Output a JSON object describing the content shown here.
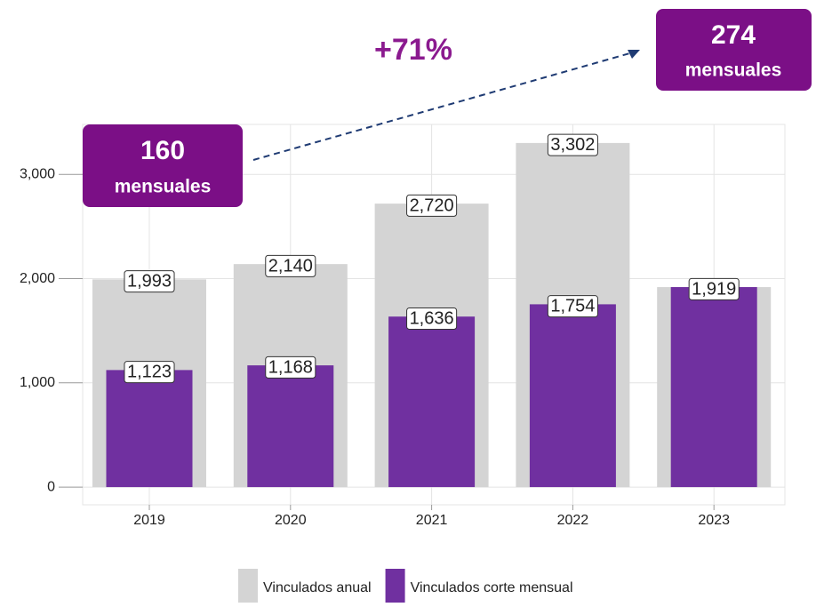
{
  "chart_data": {
    "type": "bar",
    "categories": [
      "2019",
      "2020",
      "2021",
      "2022",
      "2023"
    ],
    "series": [
      {
        "name": "Vinculados anual",
        "color": "#d4d4d4",
        "values": [
          1993,
          2140,
          2720,
          3302,
          1919
        ],
        "value_labels": [
          "1,993",
          "2,140",
          "2,720",
          "3,302",
          null
        ]
      },
      {
        "name": "Vinculados corte mensual",
        "color": "#7030a0",
        "values": [
          1123,
          1168,
          1636,
          1754,
          1919
        ],
        "value_labels": [
          "1,123",
          "1,168",
          "1,636",
          "1,754",
          "1,919"
        ]
      }
    ],
    "ylim": [
      -170,
      3480
    ],
    "yticks": [
      0,
      {
        "value": 1000,
        "label": "1,000"
      },
      {
        "value": 2000,
        "label": "2,000"
      },
      {
        "value": 3000,
        "label": "3,000"
      }
    ],
    "grid": true,
    "legend": "bottom",
    "annotations": {
      "change": "+71%",
      "start": {
        "value": 160,
        "label": "mensuales"
      },
      "end": {
        "value": 274,
        "label": "mensuales"
      }
    }
  }
}
